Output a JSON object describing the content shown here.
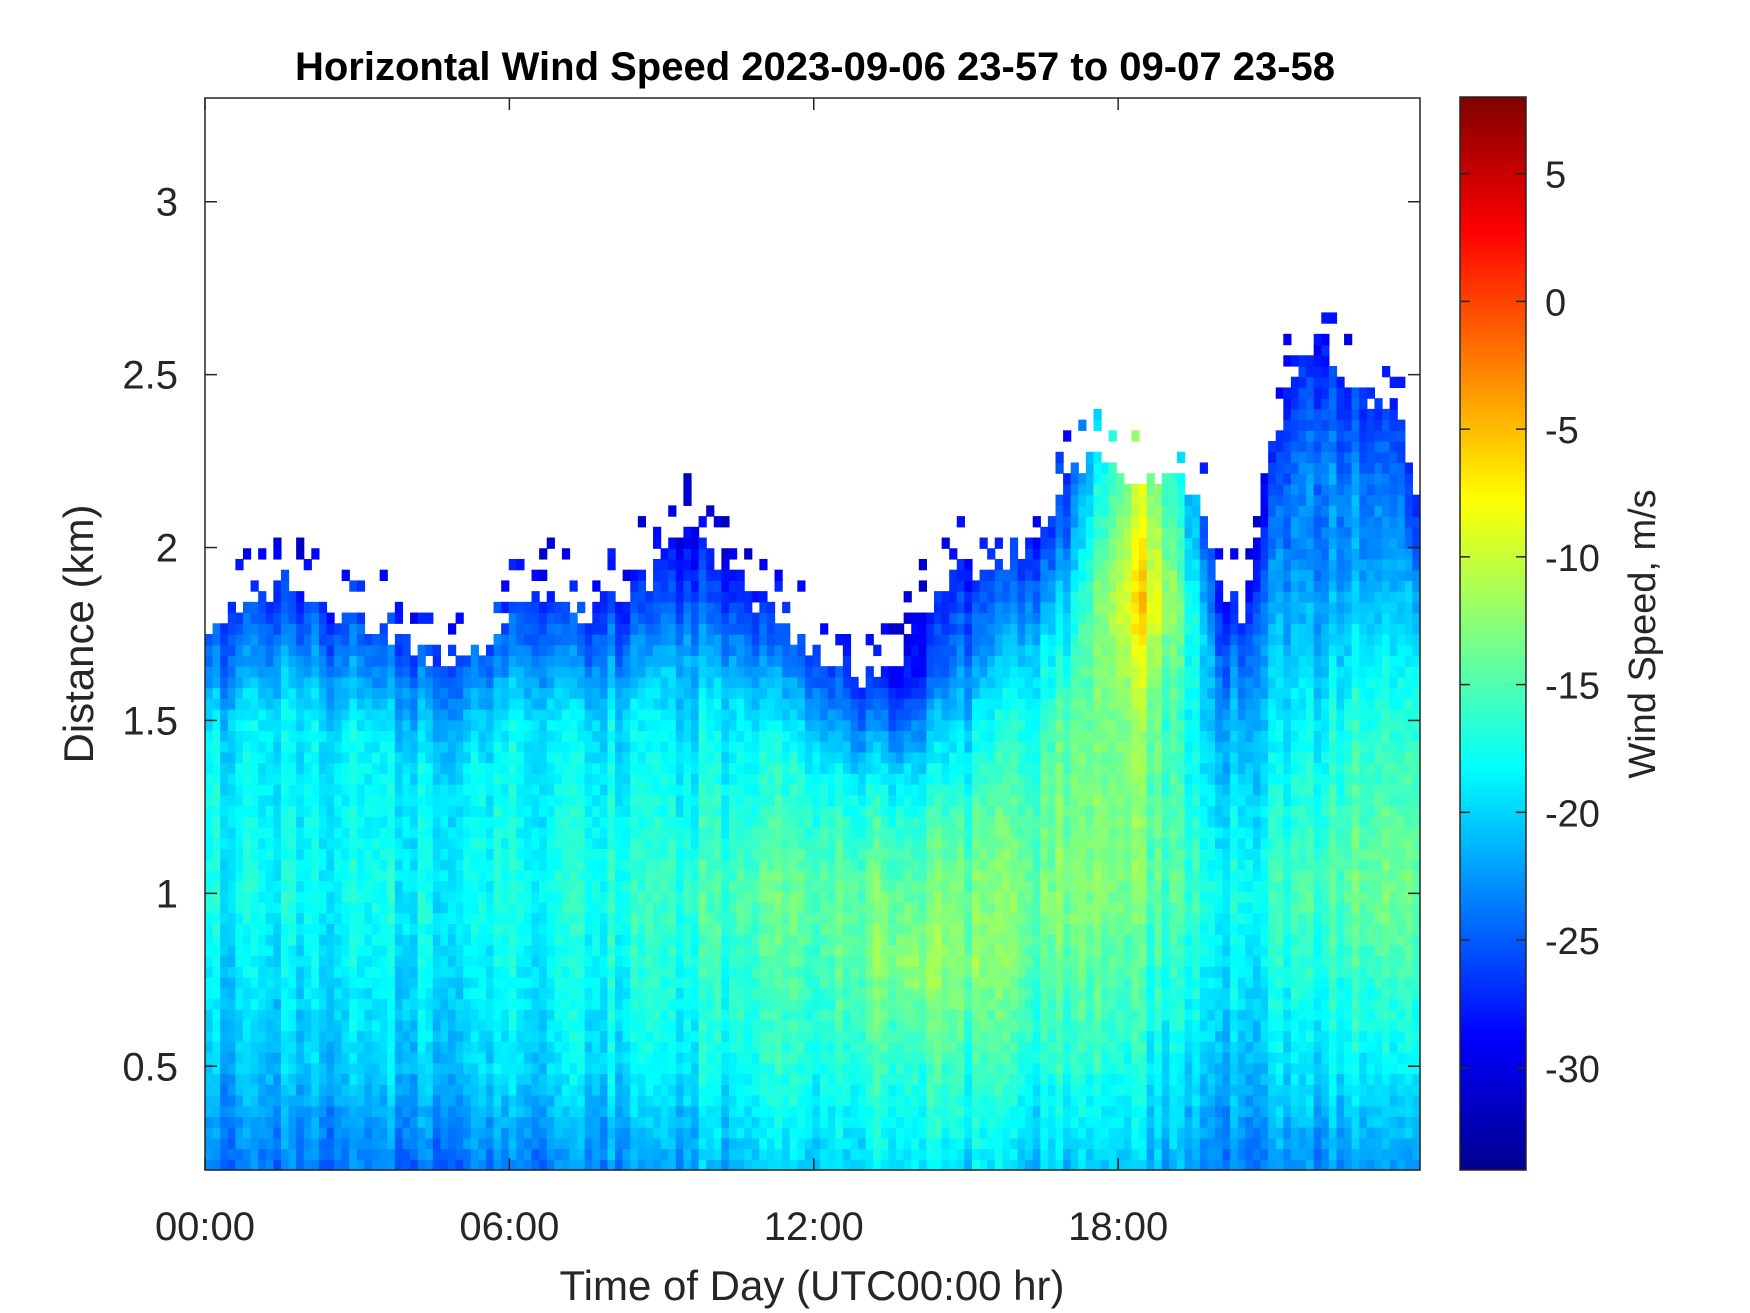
{
  "chart_data": {
    "type": "heatmap",
    "title": "Horizontal Wind Speed 2023-09-06 23-57 to 09-07 23-58",
    "xlabel": "Time of Day (UTC00:00 hr)",
    "ylabel": "Distance (km)",
    "colorbar_label": "Wind Speed, m/s",
    "colormap": "jet",
    "x_unit": "hours",
    "xlim": [
      0,
      23.95
    ],
    "ylim": [
      0.2,
      3.3
    ],
    "clim": [
      -34,
      8
    ],
    "grid": false,
    "x_ticks": [
      {
        "value": 0,
        "label": "00:00"
      },
      {
        "value": 6,
        "label": "06:00"
      },
      {
        "value": 12,
        "label": "12:00"
      },
      {
        "value": 18,
        "label": "18:00"
      }
    ],
    "y_ticks": [
      {
        "value": 0.5,
        "label": "0.5"
      },
      {
        "value": 1,
        "label": "1"
      },
      {
        "value": 1.5,
        "label": "1.5"
      },
      {
        "value": 2,
        "label": "2"
      },
      {
        "value": 2.5,
        "label": "2.5"
      },
      {
        "value": 3,
        "label": "3"
      }
    ],
    "colorbar_ticks": [
      {
        "value": 5,
        "label": "5"
      },
      {
        "value": 0,
        "label": "0"
      },
      {
        "value": -5,
        "label": "-5"
      },
      {
        "value": -10,
        "label": "-10"
      },
      {
        "value": -15,
        "label": "-15"
      },
      {
        "value": -20,
        "label": "-20"
      },
      {
        "value": -25,
        "label": "-25"
      },
      {
        "value": -30,
        "label": "-30"
      }
    ],
    "data_top_km": {
      "time_hr": [
        0,
        1,
        1.5,
        2.5,
        3.5,
        4.5,
        5.5,
        6.5,
        7.5,
        8.5,
        9.5,
        10.5,
        11.5,
        12.5,
        13.5,
        14.5,
        15.5,
        16.5,
        17,
        17.5,
        18,
        18.5,
        19,
        19.5,
        20,
        20.5,
        21,
        21.5,
        22,
        22.5,
        23,
        23.5,
        23.95
      ],
      "top": [
        1.75,
        1.85,
        1.9,
        1.82,
        1.75,
        1.68,
        1.72,
        1.85,
        1.82,
        1.88,
        2.05,
        1.9,
        1.75,
        1.65,
        1.62,
        1.9,
        1.95,
        2.05,
        2.2,
        2.3,
        2.25,
        2.15,
        2.2,
        2.15,
        1.9,
        1.8,
        2.3,
        2.5,
        2.6,
        2.5,
        2.4,
        2.45,
        2.05
      ]
    },
    "speed_profiles_m_s": [
      {
        "time_hr": 0,
        "distance_km": [
          0.2,
          0.5,
          1.0,
          1.5,
          2.0
        ],
        "values": [
          -24,
          -21,
          -18,
          -19,
          -24
        ]
      },
      {
        "time_hr": 6,
        "distance_km": [
          0.2,
          0.5,
          1.0,
          1.5,
          2.0
        ],
        "values": [
          -24,
          -20,
          -18,
          -19,
          -24
        ]
      },
      {
        "time_hr": 12,
        "distance_km": [
          0.2,
          0.5,
          1.0,
          1.5,
          2.0
        ],
        "values": [
          -20,
          -17,
          -14,
          -19,
          -25
        ]
      },
      {
        "time_hr": 14,
        "distance_km": [
          0.2,
          0.5,
          0.8,
          1.2,
          1.6
        ],
        "values": [
          -19,
          -16,
          -12,
          -16,
          -25
        ]
      },
      {
        "time_hr": 17,
        "distance_km": [
          0.2,
          0.5,
          1.0,
          1.5,
          2.0
        ],
        "values": [
          -21,
          -17,
          -13,
          -15,
          -22
        ]
      },
      {
        "time_hr": 18.5,
        "distance_km": [
          0.2,
          0.5,
          1.0,
          1.5,
          1.85
        ],
        "values": [
          -21,
          -18,
          -14,
          -13,
          -6
        ]
      },
      {
        "time_hr": 20,
        "distance_km": [
          0.2,
          0.5,
          1.0,
          1.5,
          2.0
        ],
        "values": [
          -24,
          -21,
          -18,
          -22,
          -25
        ]
      },
      {
        "time_hr": 23,
        "distance_km": [
          0.2,
          0.5,
          1.0,
          1.5,
          2.0
        ],
        "values": [
          -22,
          -18,
          -13,
          -16,
          -22
        ]
      }
    ]
  }
}
